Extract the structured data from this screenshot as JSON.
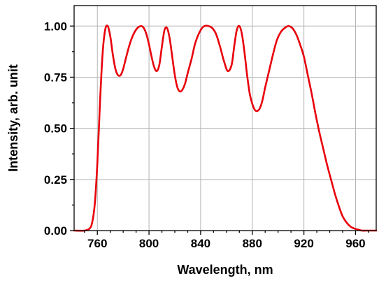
{
  "chart_data": {
    "type": "line",
    "xlabel": "Wavelength, nm",
    "ylabel": "Intensity, arb. unit",
    "xlim": [
      742,
      976
    ],
    "ylim": [
      0,
      1.1
    ],
    "grid": true,
    "x_ticks": [
      760,
      800,
      840,
      880,
      920,
      960
    ],
    "x_tick_labels": [
      "760",
      "800",
      "840",
      "880",
      "920",
      "960"
    ],
    "y_ticks": [
      0,
      0.25,
      0.5,
      0.75,
      1.0
    ],
    "y_tick_labels": [
      "0.00",
      "0.25",
      "0.50",
      "0.75",
      "1.00"
    ],
    "series": [
      {
        "color": "#e8000b",
        "x": [
          742,
          750,
          754,
          756,
          758,
          760,
          762,
          764,
          766,
          768,
          770,
          772,
          774,
          776,
          778,
          780,
          782,
          785,
          788,
          791,
          794,
          796,
          798,
          800,
          802,
          804,
          806,
          808,
          810,
          812,
          814,
          816,
          818,
          820,
          822,
          824,
          826,
          828,
          830,
          833,
          836,
          840,
          843,
          846,
          849,
          852,
          855,
          858,
          861,
          864,
          866,
          868,
          870,
          872,
          874,
          876,
          878,
          880,
          882,
          884,
          886,
          888,
          890,
          893,
          896,
          899,
          902,
          905,
          908,
          911,
          914,
          917,
          920,
          923,
          926,
          929,
          932,
          935,
          938,
          941,
          944,
          947,
          950,
          953,
          956,
          959,
          962,
          965,
          968,
          971,
          974,
          976
        ],
        "y": [
          0.0,
          0.0,
          0.01,
          0.04,
          0.13,
          0.33,
          0.62,
          0.86,
          0.98,
          1.0,
          0.95,
          0.86,
          0.79,
          0.76,
          0.76,
          0.79,
          0.84,
          0.91,
          0.96,
          0.99,
          1.0,
          0.99,
          0.96,
          0.91,
          0.85,
          0.8,
          0.78,
          0.81,
          0.9,
          0.98,
          0.99,
          0.94,
          0.85,
          0.76,
          0.7,
          0.68,
          0.69,
          0.72,
          0.77,
          0.84,
          0.92,
          0.98,
          1.0,
          1.0,
          0.99,
          0.96,
          0.9,
          0.83,
          0.78,
          0.81,
          0.9,
          0.98,
          1.0,
          0.96,
          0.87,
          0.76,
          0.67,
          0.62,
          0.59,
          0.585,
          0.6,
          0.64,
          0.7,
          0.78,
          0.86,
          0.93,
          0.97,
          0.99,
          1.0,
          0.99,
          0.96,
          0.91,
          0.85,
          0.76,
          0.67,
          0.57,
          0.48,
          0.4,
          0.32,
          0.25,
          0.18,
          0.12,
          0.07,
          0.04,
          0.02,
          0.01,
          0.005,
          0.0,
          0.0,
          0.0,
          0.0,
          0.0
        ]
      }
    ]
  }
}
